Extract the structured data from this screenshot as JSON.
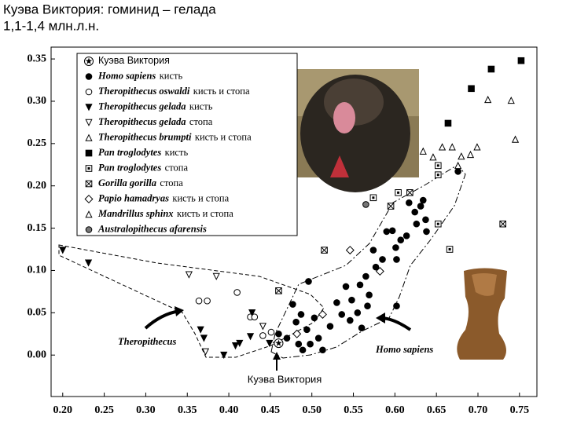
{
  "chart_data": {
    "type": "scatter",
    "title": "Куэва Виктория: гоминид – гелада",
    "subtitle": "1,1-1,4 млн.л.н.",
    "xlim": [
      0.186,
      0.771
    ],
    "ylim": [
      -0.049,
      0.364
    ],
    "xticks": [
      {
        "value": 0.2,
        "label": "0.20"
      },
      0.25,
      {
        "value": 0.3,
        "label": "0.30"
      },
      0.35,
      {
        "value": 0.4,
        "label": "0.40"
      },
      0.45,
      {
        "value": 0.5,
        "label": "0.50"
      },
      0.55,
      {
        "value": 0.6,
        "label": "0.60"
      },
      0.65,
      {
        "value": 0.7,
        "label": "0.70"
      },
      0.75
    ],
    "yticks": [
      {
        "value": 0,
        "label": "0.00"
      },
      0.05,
      {
        "value": 0.1,
        "label": "0.10"
      },
      0.15,
      {
        "value": 0.2,
        "label": "0.20"
      },
      0.25,
      {
        "value": 0.3,
        "label": "0.30"
      },
      0.35
    ],
    "annotations": [
      "Theropithecus",
      "Homo sapiens",
      "Куэва Виктория"
    ],
    "series": [
      {
        "name": "Куэва Виктория",
        "marker": "star",
        "color": "#000000",
        "x": [
          0.46
        ],
        "values": [
          0.014
        ]
      },
      {
        "name": "Homo sapiens",
        "part": "кисть",
        "marker": "circle-filled",
        "color": "#000000",
        "x": [
          0.496,
          0.477,
          0.487,
          0.481,
          0.46,
          0.47,
          0.484,
          0.494,
          0.503,
          0.508,
          0.498,
          0.489,
          0.513,
          0.522,
          0.53,
          0.536,
          0.541,
          0.548,
          0.558,
          0.565,
          0.569,
          0.577,
          0.567,
          0.574,
          0.585,
          0.59,
          0.597,
          0.601,
          0.602,
          0.607,
          0.614,
          0.617,
          0.624,
          0.626,
          0.631,
          0.634,
          0.637,
          0.638,
          0.546,
          0.555,
          0.56,
          0.602,
          0.676
        ],
        "values": [
          0.087,
          0.06,
          0.048,
          0.039,
          0.025,
          0.02,
          0.013,
          0.03,
          0.044,
          0.02,
          0.013,
          0.006,
          0.006,
          0.034,
          0.062,
          0.048,
          0.081,
          0.065,
          0.083,
          0.093,
          0.071,
          0.104,
          0.058,
          0.124,
          0.113,
          0.146,
          0.147,
          0.127,
          0.113,
          0.136,
          0.141,
          0.18,
          0.169,
          0.155,
          0.176,
          0.183,
          0.16,
          0.146,
          0.041,
          0.05,
          0.032,
          0.058,
          0.217
        ]
      },
      {
        "name": "Theropithecus oswaldi",
        "part": "кисть и стопа",
        "marker": "circle-open",
        "color": "#000000",
        "x": [
          0.364,
          0.374,
          0.41,
          0.426,
          0.431,
          0.441,
          0.451
        ],
        "values": [
          0.064,
          0.064,
          0.074,
          0.045,
          0.045,
          0.023,
          0.027
        ]
      },
      {
        "name": "Theropithecus gelada",
        "part": "кисть",
        "marker": "tri-down-filled",
        "color": "#000000",
        "x": [
          0.2,
          0.231,
          0.37,
          0.394,
          0.408,
          0.413,
          0.426,
          0.428,
          0.449,
          0.366
        ],
        "values": [
          0.124,
          0.109,
          0.02,
          0.0,
          0.011,
          0.014,
          0.022,
          0.05,
          0.014,
          0.03
        ]
      },
      {
        "name": "Theropithecus gelada",
        "part": "стопа",
        "marker": "tri-down-open",
        "color": "#000000",
        "x": [
          0.352,
          0.385,
          0.372,
          0.441
        ],
        "values": [
          0.095,
          0.093,
          0.004,
          0.034
        ]
      },
      {
        "name": "Theropithecus brumpti",
        "part": "кисть и стопа",
        "marker": "tri-up-open",
        "color": "#000000",
        "x": [
          0.634,
          0.646,
          0.657,
          0.669,
          0.676,
          0.699,
          0.74,
          0.745
        ],
        "values": [
          0.241,
          0.234,
          0.246,
          0.246,
          0.224,
          0.246,
          0.301,
          0.255
        ]
      },
      {
        "name": "Pan troglodytes",
        "part": "кисть",
        "marker": "square-filled",
        "color": "#000000",
        "x": [
          0.752,
          0.716,
          0.692,
          0.664
        ],
        "values": [
          0.348,
          0.338,
          0.315,
          0.274
        ]
      },
      {
        "name": "Pan troglodytes",
        "part": "стопа",
        "marker": "square-dot",
        "color": "#000000",
        "x": [
          0.652,
          0.652,
          0.652,
          0.604,
          0.666,
          0.574
        ],
        "values": [
          0.224,
          0.213,
          0.155,
          0.192,
          0.125,
          0.186
        ]
      },
      {
        "name": "Gorilla gorilla",
        "part": "стопа",
        "marker": "square-cross",
        "color": "#000000",
        "x": [
          0.515,
          0.46,
          0.595,
          0.73,
          0.618
        ],
        "values": [
          0.124,
          0.076,
          0.176,
          0.155,
          0.192
        ]
      },
      {
        "name": "Papio hamadryas",
        "part": "кисть и стопа",
        "marker": "diamond-open",
        "color": "#000000",
        "x": [
          0.546,
          0.582,
          0.513,
          0.482
        ],
        "values": [
          0.124,
          0.099,
          0.048,
          0.025
        ]
      },
      {
        "name": "Mandrillus sphinx",
        "part": "кисть и стопа",
        "marker": "tri-up-open",
        "color": "#000000",
        "x": [
          0.691,
          0.68,
          0.712
        ],
        "values": [
          0.237,
          0.235,
          0.302
        ]
      },
      {
        "name": "Australopithecus afarensis",
        "marker": "circle-grey",
        "color": "#777777",
        "x": [
          0.565
        ],
        "values": [
          0.178
        ]
      }
    ]
  }
}
